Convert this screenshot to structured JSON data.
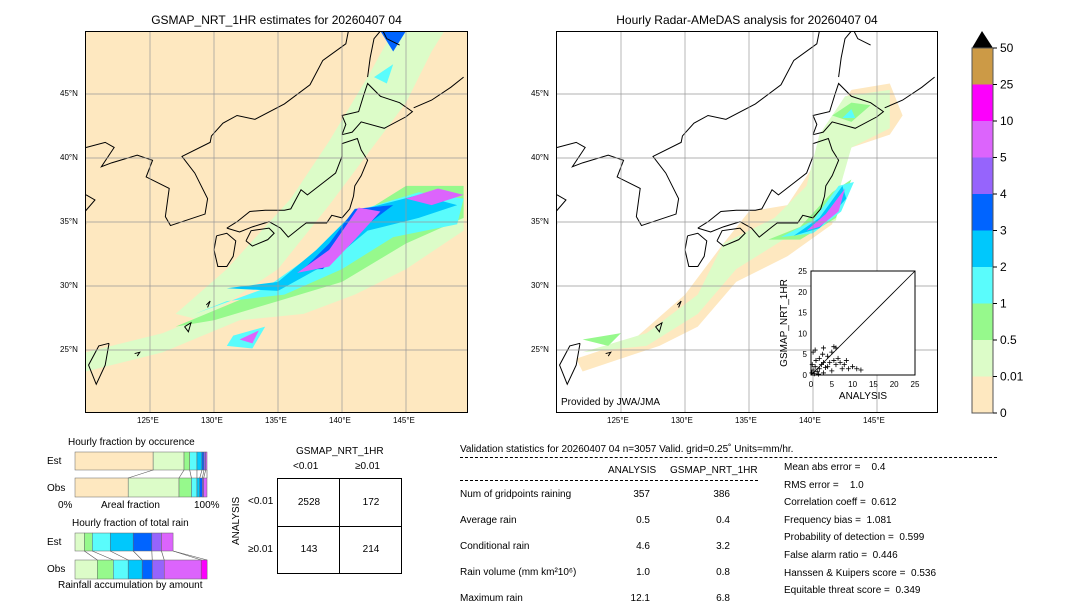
{
  "titles": {
    "left_map": "GSMAP_NRT_1HR estimates for 20260407 04",
    "right_map": "Hourly Radar-AMeDAS analysis for 20260407 04",
    "provider": "Provided by JWA/JMA"
  },
  "map_ticks": {
    "lon": [
      "125°E",
      "130°E",
      "135°E",
      "140°E",
      "145°E"
    ],
    "lat": [
      "45°N",
      "40°N",
      "35°N",
      "30°N",
      "25°N"
    ]
  },
  "colorbar": {
    "labels": [
      "0",
      "0.01",
      "0.5",
      "1",
      "2",
      "3",
      "4",
      "5",
      "10",
      "25",
      "50"
    ],
    "colors": [
      "#fee8c0",
      "#dcfcc8",
      "#96f98c",
      "#5afcfc",
      "#00c8fc",
      "#0064ff",
      "#9664fc",
      "#dc64fc",
      "#fc00fc",
      "#cc9a46"
    ],
    "extend_color": "#000000"
  },
  "chart_data": [
    {
      "type": "bar",
      "title": "Hourly fraction by occurence",
      "xlabel": "Areal fraction",
      "xticks": [
        "0%",
        "100%"
      ],
      "categories": [
        "Est",
        "Obs"
      ],
      "stacked": true,
      "bins": [
        "0",
        "0.01",
        "0.5",
        "1",
        "2",
        "3",
        "4",
        "5"
      ],
      "series": [
        {
          "name": "Est",
          "values": [
            0.592,
            0.234,
            0.043,
            0.055,
            0.038,
            0.015,
            0.013,
            0.01
          ]
        },
        {
          "name": "Obs",
          "values": [
            0.403,
            0.385,
            0.094,
            0.042,
            0.021,
            0.02,
            0.01,
            0.025
          ]
        }
      ]
    },
    {
      "type": "bar",
      "title": "Hourly fraction of total rain",
      "xlabel": "Rainfall accumulation by amount",
      "categories": [
        "Est",
        "Obs"
      ],
      "stacked": true,
      "bins": [
        "0.01",
        "0.5",
        "1",
        "2",
        "3",
        "4",
        "5",
        "10"
      ],
      "series": [
        {
          "name": "Est",
          "values": [
            0.071,
            0.06,
            0.136,
            0.174,
            0.141,
            0.073,
            0.088,
            0
          ]
        },
        {
          "name": "Obs",
          "values": [
            0.169,
            0.121,
            0.113,
            0.106,
            0.076,
            0.091,
            0.28,
            0.045
          ]
        }
      ]
    },
    {
      "type": "scatter",
      "xlabel": "ANALYSIS",
      "ylabel": "GSMAP_NRT_1HR",
      "xlim": [
        0,
        25
      ],
      "ylim": [
        0,
        25
      ],
      "xticks": [
        "0",
        "5",
        "10",
        "15",
        "20",
        "25"
      ],
      "yticks": [
        "0",
        "5",
        "10",
        "15",
        "20",
        "25"
      ],
      "diagonal": true,
      "points": [
        [
          0.2,
          0.5
        ],
        [
          0.5,
          1.2
        ],
        [
          0.8,
          0.3
        ],
        [
          1,
          2
        ],
        [
          1.2,
          3.5
        ],
        [
          1.5,
          0.8
        ],
        [
          2,
          1.5
        ],
        [
          2,
          4
        ],
        [
          2.5,
          2.5
        ],
        [
          3,
          0.5
        ],
        [
          3,
          3
        ],
        [
          3.5,
          1.8
        ],
        [
          4,
          4.5
        ],
        [
          4,
          2
        ],
        [
          4.5,
          3
        ],
        [
          5,
          5.5
        ],
        [
          5,
          1
        ],
        [
          5.5,
          3.5
        ],
        [
          6,
          6.5
        ],
        [
          6,
          2.5
        ],
        [
          6.5,
          4
        ],
        [
          7,
          3
        ],
        [
          7.5,
          1.5
        ],
        [
          8,
          2.5
        ],
        [
          8.5,
          3.5
        ],
        [
          9,
          1.5
        ],
        [
          10,
          2
        ],
        [
          11,
          1.5
        ],
        [
          12,
          1.2
        ],
        [
          0.5,
          5.5
        ],
        [
          1,
          6
        ],
        [
          3,
          6.5
        ],
        [
          5.5,
          6.8
        ],
        [
          0.3,
          2.5
        ],
        [
          1.8,
          0.2
        ],
        [
          2.8,
          5
        ]
      ]
    },
    {
      "type": "table",
      "title": "GSMAP_NRT_1HR",
      "col_headers": [
        "<0.01",
        "≥0.01"
      ],
      "row_title": "ANALYSIS",
      "row_headers": [
        "<0.01",
        "≥0.01"
      ],
      "cells": [
        [
          "2528",
          "172"
        ],
        [
          "143",
          "214"
        ]
      ]
    }
  ],
  "stats": {
    "header": "Validation statistics for 20260407 04  n=3057 Valid. grid=0.25˚ Units=mm/hr.",
    "columns": [
      "ANALYSIS",
      "GSMAP_NRT_1HR"
    ],
    "rows": [
      {
        "label": "Num of gridpoints raining",
        "a": "357",
        "g": "386"
      },
      {
        "label": "Average rain",
        "a": "0.5",
        "g": "0.4"
      },
      {
        "label": "Conditional rain",
        "a": "4.6",
        "g": "3.2"
      },
      {
        "label": "Rain volume (mm km²10⁶)",
        "a": "1.0",
        "g": "0.8"
      },
      {
        "label": "Maximum rain",
        "a": "12.1",
        "g": "6.8"
      }
    ],
    "scores": [
      "Mean abs error =    0.4",
      "RMS error =    1.0",
      "Correlation coeff =  0.612",
      "Frequency bias =  1.081",
      "Probability of detection =  0.599",
      "False alarm ratio =  0.446",
      "Hanssen & Kuipers score =  0.536",
      "Equitable threat score =  0.349"
    ]
  }
}
